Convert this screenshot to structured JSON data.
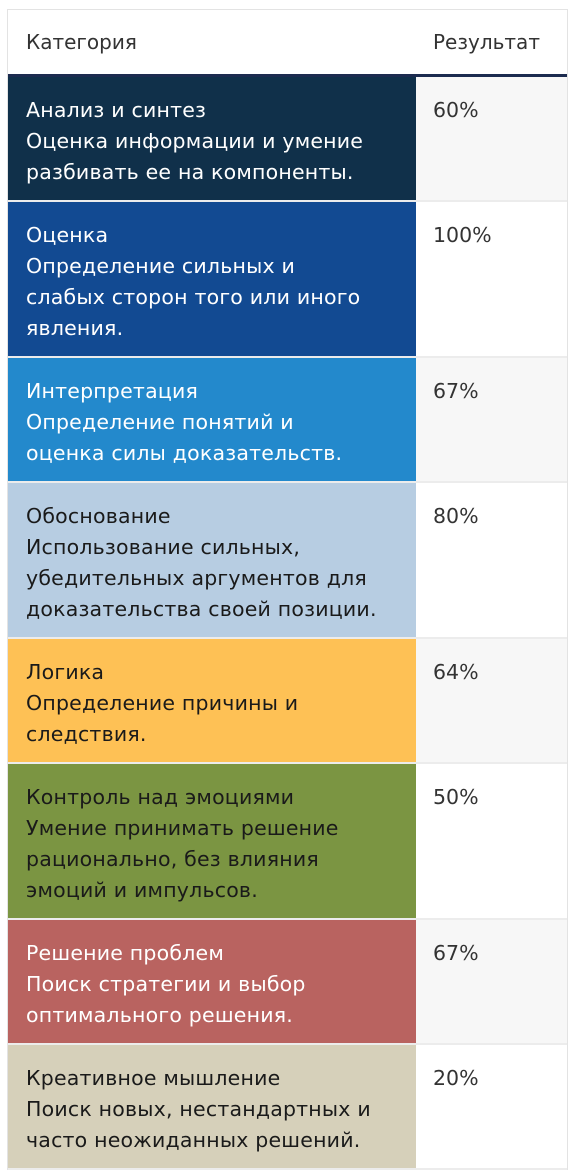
{
  "header": {
    "category_label": "Категория",
    "result_label": "Результат"
  },
  "rows": [
    {
      "color": "#10304a",
      "text_color": "#ffffff",
      "lines": [
        "Анализ и синтез",
        "Оценка информации и умение",
        "разбивать ее на компоненты."
      ],
      "result": "60%"
    },
    {
      "color": "#124a92",
      "text_color": "#ffffff",
      "lines": [
        "Оценка",
        "Определение сильных и",
        "слабых сторон того или иного",
        "явления."
      ],
      "result": "100%"
    },
    {
      "color": "#2389cc",
      "text_color": "#ffffff",
      "lines": [
        "Интерпретация",
        "Определение понятий и",
        "оценка силы доказательств."
      ],
      "result": "67%"
    },
    {
      "color": "#b7cde2",
      "text_color": "#1a1a1a",
      "lines": [
        "Обоснование",
        "Использование сильных,",
        "убедительных аргументов для",
        "доказательства своей позиции."
      ],
      "result": "80%"
    },
    {
      "color": "#fec155",
      "text_color": "#1a1a1a",
      "lines": [
        "Логика",
        "Определение причины и",
        "следствия."
      ],
      "result": "64%"
    },
    {
      "color": "#7b9542",
      "text_color": "#1a1a1a",
      "lines": [
        "Контроль над эмоциями",
        "Умение принимать решение",
        "рационально, без влияния",
        "эмоций и импульсов."
      ],
      "result": "50%"
    },
    {
      "color": "#b96360",
      "text_color": "#ffffff",
      "lines": [
        "Решение проблем",
        "Поиск стратегии и выбор",
        "оптимального решения."
      ],
      "result": "67%"
    },
    {
      "color": "#d6d0ba",
      "text_color": "#1a1a1a",
      "lines": [
        "Креативное мышление",
        "Поиск новых, нестандартных и",
        "часто неожиданных решений."
      ],
      "result": "20%"
    }
  ]
}
